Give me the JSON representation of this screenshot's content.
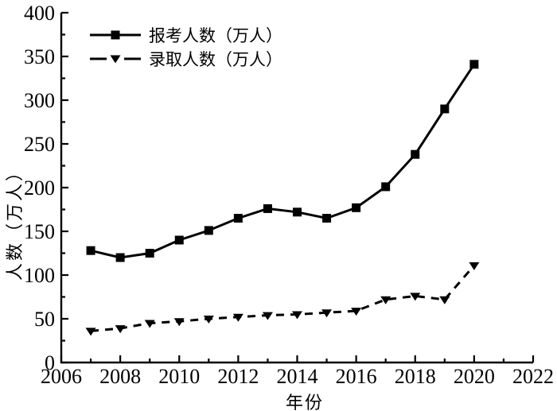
{
  "figure": {
    "background": "#ffffff"
  },
  "chart_data": {
    "type": "line",
    "ink": "#000000",
    "title": "",
    "xlabel": "年份",
    "ylabel": "人数（万人）",
    "xlim": [
      2006,
      2022
    ],
    "ylim": [
      0,
      400
    ],
    "x_major_ticks": [
      2006,
      2008,
      2010,
      2012,
      2014,
      2016,
      2018,
      2020,
      2022
    ],
    "x_minor_step": 1,
    "y_major_ticks": [
      0,
      50,
      100,
      150,
      200,
      250,
      300,
      350,
      400
    ],
    "y_minor_step": 25,
    "grid": false,
    "legend_position": "top-left",
    "x": [
      2007,
      2008,
      2009,
      2010,
      2011,
      2012,
      2013,
      2014,
      2015,
      2016,
      2017,
      2018,
      2019,
      2020
    ],
    "series": [
      {
        "name": "报考人数（万人）",
        "marker": "square",
        "line": "solid",
        "color": "#000000",
        "values": [
          128,
          120,
          125,
          140,
          151,
          165,
          176,
          172,
          165,
          177,
          201,
          238,
          290,
          341
        ]
      },
      {
        "name": "录取人数（万人）",
        "marker": "triangle-down",
        "line": "dashed",
        "color": "#000000",
        "values": [
          36,
          39,
          45,
          47,
          50,
          52,
          54,
          55,
          57,
          59,
          72,
          76,
          72,
          111
        ]
      }
    ]
  }
}
